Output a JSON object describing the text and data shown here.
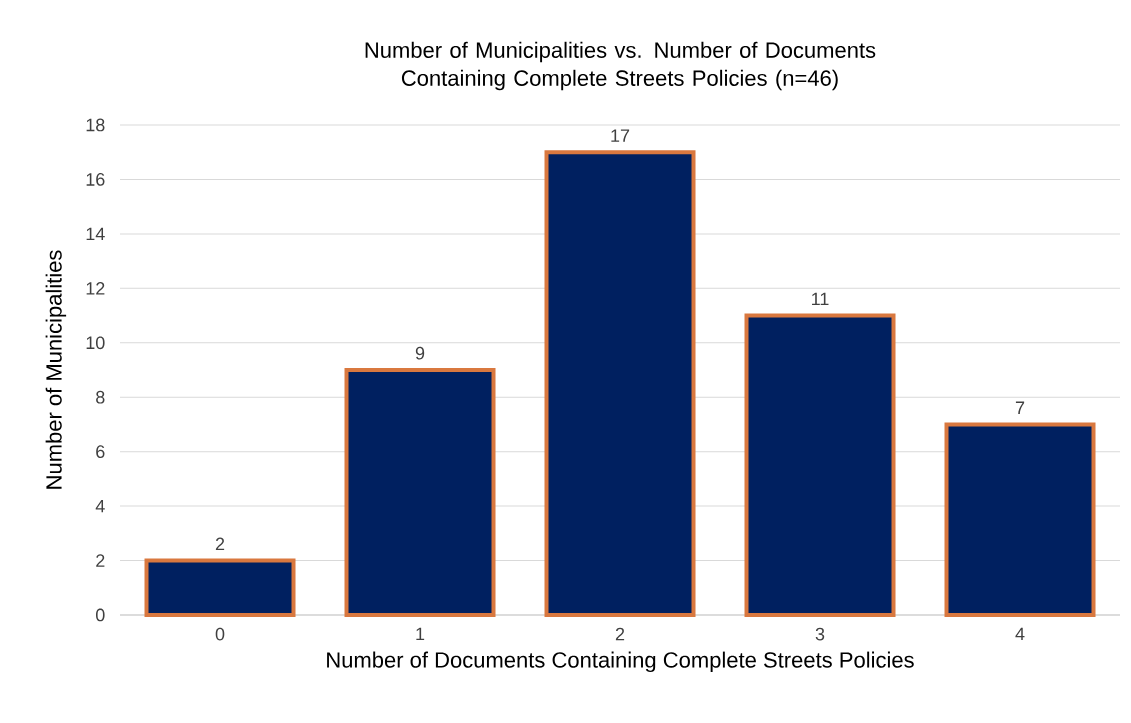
{
  "chart_data": {
    "type": "bar",
    "title": "Number of Municipalities vs. Number of Documents Containing Complete Streets Policies (n=46)",
    "xlabel": "Number of Documents Containing Complete Streets Policies",
    "ylabel": "Number of Municipalities",
    "categories": [
      "0",
      "1",
      "2",
      "3",
      "4"
    ],
    "values": [
      2,
      9,
      17,
      11,
      7
    ],
    "color": "#002060",
    "ylim": [
      0,
      18
    ],
    "yticks": [
      0,
      2,
      4,
      6,
      8,
      10,
      12,
      14,
      16,
      18
    ],
    "grid": "y",
    "data_labels": true
  }
}
